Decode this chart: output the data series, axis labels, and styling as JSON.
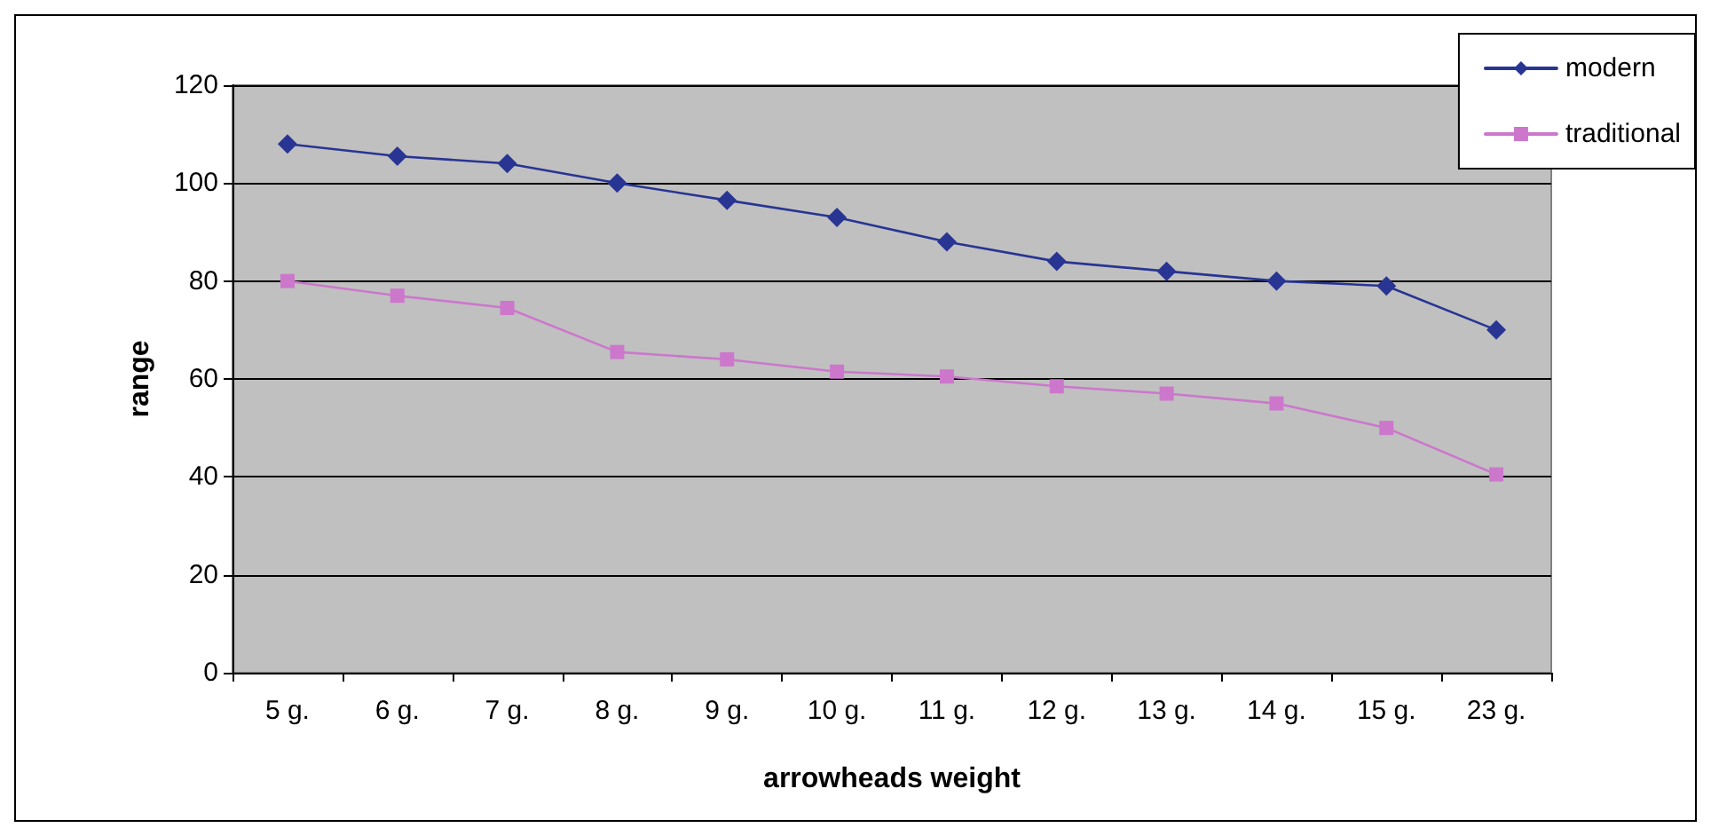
{
  "chart_data": {
    "type": "line",
    "xlabel": "arrowheads weight",
    "ylabel": "range",
    "categories": [
      "5 g.",
      "6 g.",
      "7 g.",
      "8 g.",
      "9 g.",
      "10 g.",
      "11 g.",
      "12 g.",
      "13 g.",
      "14 g.",
      "15 g.",
      "23 g."
    ],
    "series": [
      {
        "name": "modern",
        "color": "#283593",
        "marker": "diamond",
        "values": [
          108,
          105.5,
          104,
          100,
          96.5,
          93,
          88,
          84,
          82,
          80,
          79,
          70
        ]
      },
      {
        "name": "traditional",
        "color": "#cc77cc",
        "marker": "square",
        "values": [
          80,
          77,
          74.5,
          65.5,
          64,
          61.5,
          60.5,
          58.5,
          57,
          55,
          50,
          40.5
        ]
      }
    ],
    "ylim": [
      0,
      120
    ],
    "yticks": [
      0,
      20,
      40,
      60,
      80,
      100,
      120
    ],
    "grid": "y",
    "legend": "top right",
    "line_style": "solid"
  }
}
